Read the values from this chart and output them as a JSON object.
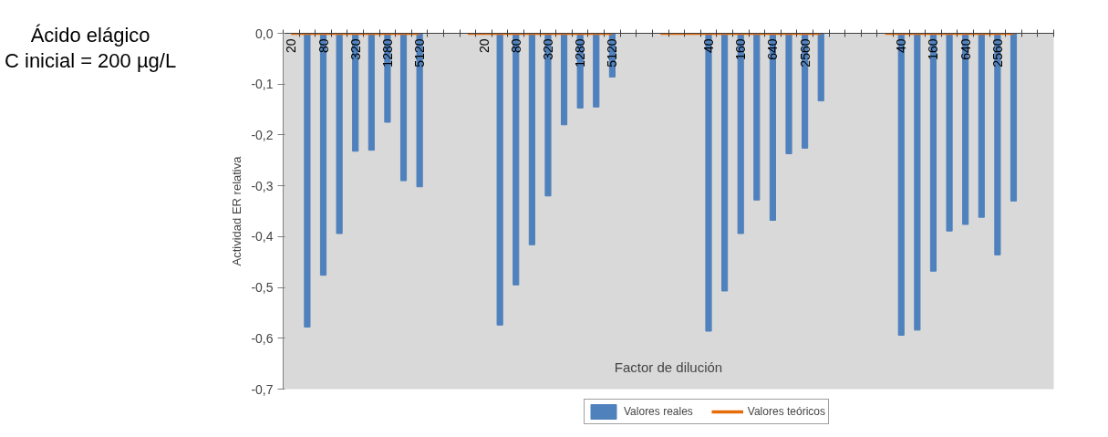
{
  "chart_data": {
    "type": "bar",
    "title": "Ácido elágico",
    "subtitle": "C inicial = 200 µg/L",
    "xlabel": "Factor de dilución",
    "ylabel": "Actividad ER relativa",
    "categories": [
      "20",
      null,
      "80",
      null,
      "320",
      null,
      "1280",
      null,
      "5120",
      null,
      null,
      null,
      "20",
      null,
      "80",
      null,
      "320",
      null,
      "1280",
      null,
      "5120",
      null,
      null,
      null,
      null,
      null,
      "40",
      null,
      "160",
      null,
      "640",
      null,
      "2560",
      null,
      null,
      null,
      null,
      null,
      "40",
      null,
      "160",
      null,
      "640",
      null,
      "2560",
      null,
      null,
      null
    ],
    "series": [
      {
        "name": "Valores reales",
        "color": "#4f81bd",
        "values": [
          null,
          -0.578,
          -0.476,
          -0.394,
          -0.232,
          -0.23,
          -0.175,
          -0.29,
          -0.302,
          null,
          null,
          null,
          null,
          -0.574,
          -0.495,
          -0.416,
          -0.32,
          -0.18,
          -0.147,
          -0.145,
          -0.086,
          null,
          null,
          null,
          null,
          null,
          -0.586,
          -0.507,
          -0.394,
          -0.328,
          -0.368,
          -0.237,
          -0.226,
          -0.133,
          null,
          null,
          null,
          null,
          -0.594,
          -0.584,
          -0.468,
          -0.389,
          -0.376,
          -0.362,
          -0.436,
          -0.33,
          null,
          null
        ]
      },
      {
        "name": "Valores teóricos",
        "type": "line",
        "color": "#e46c0a",
        "values": [
          0,
          0,
          0,
          0,
          0,
          0,
          0,
          0,
          0,
          null,
          null,
          0,
          0,
          0,
          0,
          0,
          0,
          0,
          0,
          0,
          0,
          null,
          null,
          0,
          0,
          0,
          0,
          0,
          0,
          0,
          0,
          0,
          0,
          0,
          null,
          null,
          null,
          0,
          0,
          0,
          0,
          0,
          0,
          0,
          0,
          0,
          null,
          null
        ]
      }
    ],
    "ylim": [
      -0.7,
      0.0
    ],
    "yticks": [
      {
        "value": 0,
        "label": "0,0"
      },
      {
        "value": -0.1,
        "label": "-0,1"
      },
      {
        "value": -0.2,
        "label": "-0,2"
      },
      {
        "value": -0.3,
        "label": "-0,3"
      },
      {
        "value": -0.4,
        "label": "-0,4"
      },
      {
        "value": -0.5,
        "label": "-0,5"
      },
      {
        "value": -0.6,
        "label": "-0,6"
      },
      {
        "value": -0.7,
        "label": "-0,7"
      }
    ],
    "grid": false,
    "legend": "bottom"
  }
}
